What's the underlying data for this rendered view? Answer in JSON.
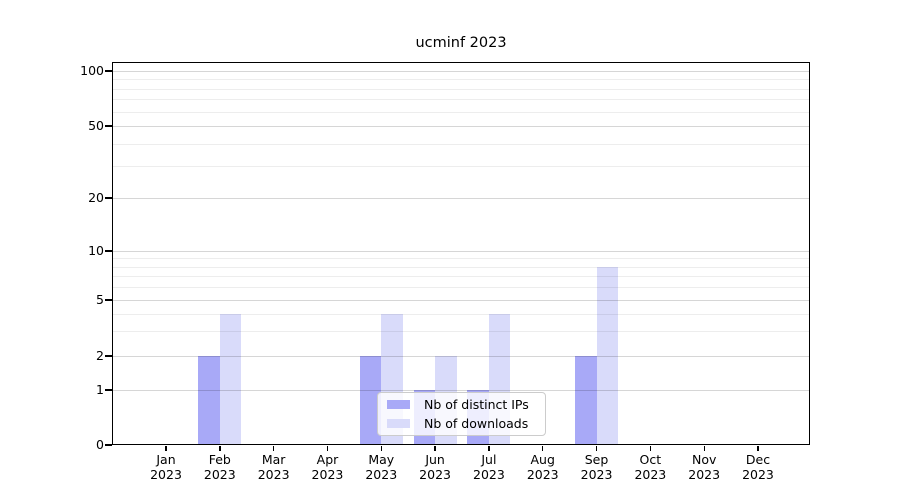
{
  "chart_data": {
    "type": "bar",
    "title": "ucminf 2023",
    "categories": [
      "Jan 2023",
      "Feb 2023",
      "Mar 2023",
      "Apr 2023",
      "May 2023",
      "Jun 2023",
      "Jul 2023",
      "Aug 2023",
      "Sep 2023",
      "Oct 2023",
      "Nov 2023",
      "Dec 2023"
    ],
    "series": [
      {
        "name": "Nb of distinct IPs",
        "color": "#a8a9f7",
        "values": [
          0,
          2,
          0,
          0,
          2,
          1,
          1,
          0,
          2,
          0,
          0,
          0
        ]
      },
      {
        "name": "Nb of downloads",
        "color": "#d9dbfa",
        "values": [
          0,
          4,
          0,
          0,
          4,
          2,
          4,
          0,
          8,
          0,
          0,
          0
        ]
      }
    ],
    "xlabel": "",
    "ylabel": "",
    "yscale": "symlog",
    "ylim": [
      0,
      100
    ],
    "yticks": [
      0,
      1,
      2,
      5,
      10,
      20,
      50,
      100
    ],
    "minor_yticks": [
      3,
      4,
      6,
      7,
      8,
      9,
      30,
      40,
      60,
      70,
      80,
      90
    ],
    "grid": "on",
    "legend_position": "lower center",
    "plot_background": "#ffffff"
  }
}
